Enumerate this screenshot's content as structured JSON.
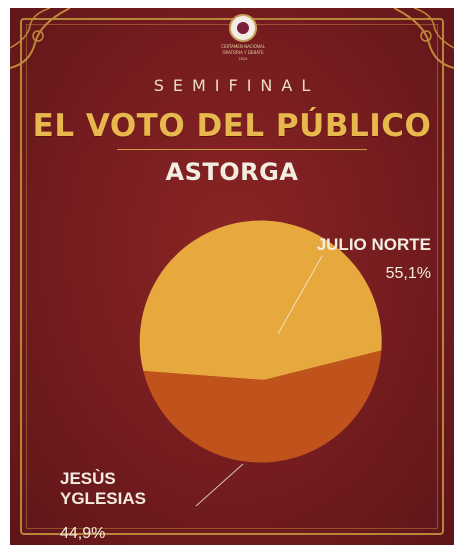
{
  "header": {
    "logo_lines": [
      "CERTAMEN NACIONAL",
      "ORATORIA Y DEBATE",
      "2024"
    ],
    "subtitle": "SEMIFINAL",
    "title": "EL VOTO DEL PÚBLICO",
    "location": "ASTORGA"
  },
  "colors": {
    "background": "#741c1f",
    "title_gold": "#e8b84e",
    "slice_julio": "#e7a93d",
    "slice_jesus": "#c0521c",
    "label_text": "#f3ece0",
    "frame_gold": "#b8863a"
  },
  "chart_data": {
    "type": "pie",
    "title": "",
    "labels": [
      [
        "JULIO NORTE"
      ],
      [
        "JESÙS",
        "YGLESIAS"
      ]
    ],
    "values": [
      55.1,
      44.9
    ],
    "value_labels": [
      "55,1%",
      "44,9%"
    ]
  }
}
